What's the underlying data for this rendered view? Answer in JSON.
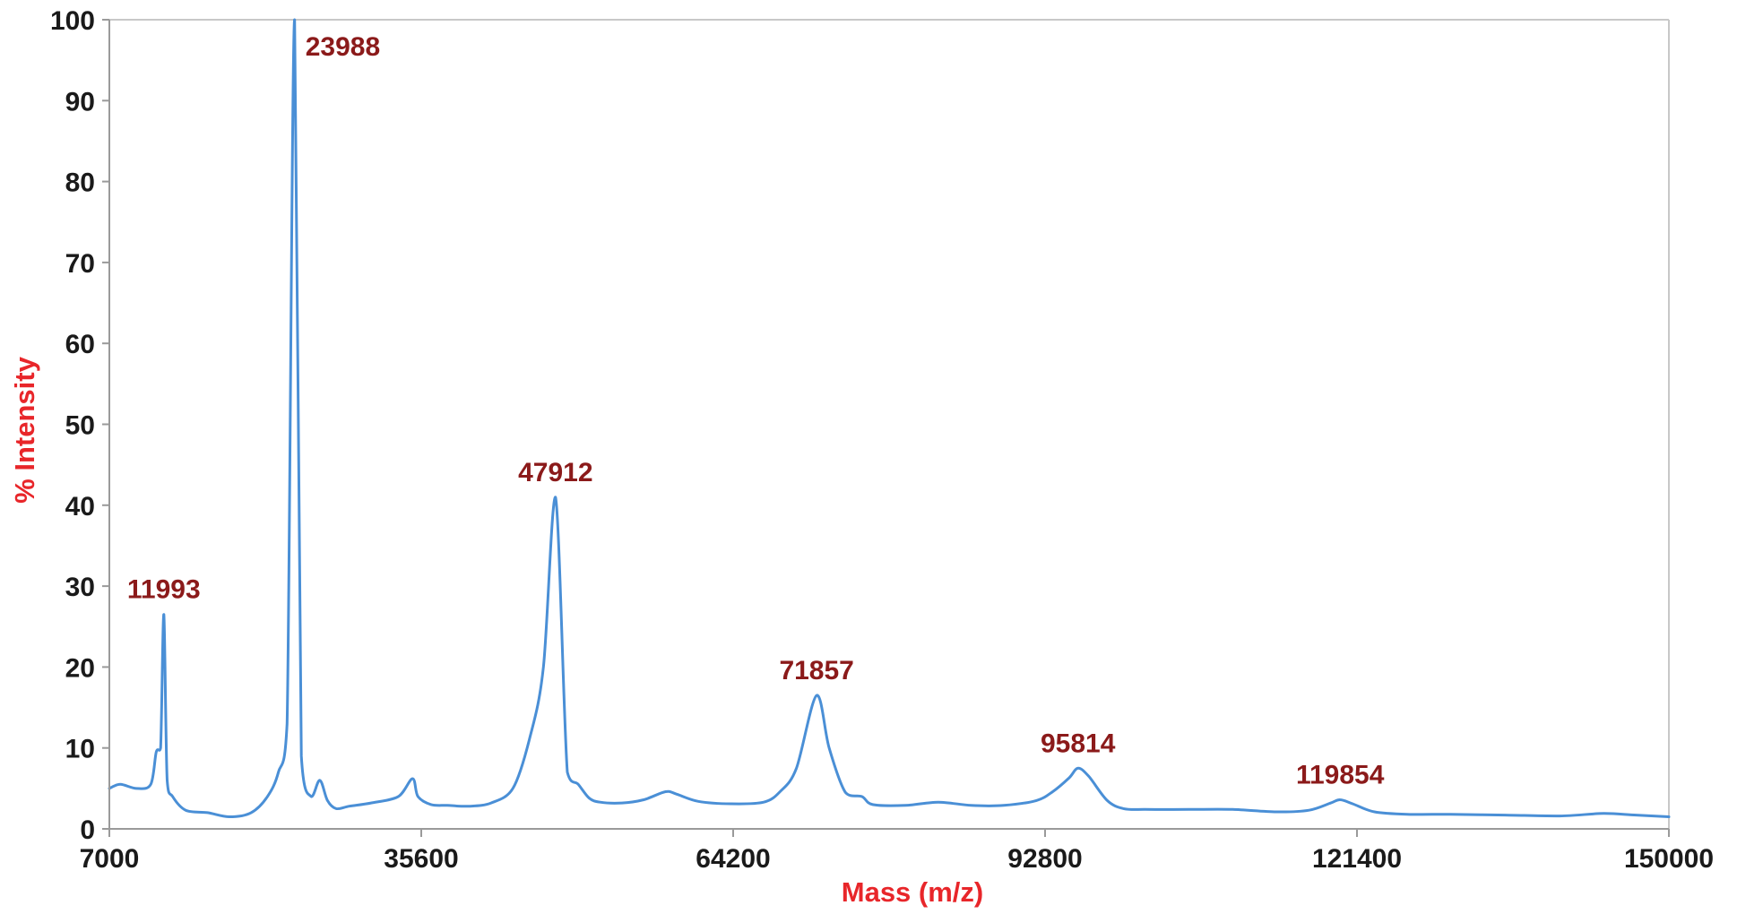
{
  "colors": {
    "series": "#4a8fd6",
    "axis_title": "#e8262a",
    "peak_label": "#8b1a1a",
    "tick_label": "#1a1a1a",
    "axis_line": "#9a9a9a",
    "frame": "#c8c8c8"
  },
  "chart_data": {
    "type": "line",
    "title": "",
    "xlabel": "Mass (m/z)",
    "ylabel": "% Intensity",
    "xlim": [
      7000,
      150000
    ],
    "ylim": [
      0,
      100
    ],
    "grid": false,
    "legend": "none",
    "x_ticks": [
      7000,
      35600,
      64200,
      92800,
      121400,
      150000
    ],
    "x_tick_labels": [
      "7000",
      "35600",
      "64200",
      "92800",
      "121400",
      "150000"
    ],
    "y_ticks": [
      0,
      10,
      20,
      30,
      40,
      50,
      60,
      70,
      80,
      90,
      100
    ],
    "y_tick_labels": [
      "0",
      "10",
      "20",
      "30",
      "40",
      "50",
      "60",
      "70",
      "80",
      "90",
      "100"
    ],
    "series": [
      {
        "x": [
          7000,
          8000,
          9500,
          10800,
          11300,
          11700,
          11993,
          12300,
          12800,
          14000,
          16000,
          18000,
          20000,
          21500,
          22500,
          23300,
          23988,
          24600,
          25500,
          26300,
          27000,
          27800,
          29000,
          31000,
          33500,
          34800,
          35300,
          36500,
          38000,
          40000,
          42000,
          44000,
          45500,
          46800,
          47912,
          49000,
          50000,
          51000,
          52000,
          54000,
          56000,
          58000,
          59000,
          61000,
          64000,
          67000,
          68500,
          70000,
          71857,
          73000,
          74500,
          76000,
          77000,
          80000,
          83000,
          86000,
          89000,
          92000,
          93500,
          95000,
          95814,
          96800,
          98500,
          100000,
          102000,
          106000,
          110000,
          114000,
          117000,
          119000,
          119854,
          121000,
          123000,
          126000,
          130000,
          135000,
          140000,
          144000,
          147000,
          150000
        ],
        "values": [
          5,
          5.5,
          5,
          5.5,
          9.5,
          10,
          26.5,
          6,
          4,
          2.3,
          2,
          1.5,
          2,
          4,
          7,
          13,
          100,
          9,
          4,
          6,
          3.5,
          2.5,
          2.8,
          3.2,
          4,
          6.2,
          4,
          3,
          2.9,
          2.8,
          3.2,
          5,
          11,
          20,
          41,
          7,
          5.5,
          3.8,
          3.3,
          3.2,
          3.6,
          4.6,
          4.3,
          3.4,
          3.1,
          3.3,
          4.6,
          7.5,
          16.5,
          10,
          4.5,
          4,
          3,
          2.9,
          3.3,
          2.9,
          2.9,
          3.5,
          4.6,
          6.3,
          7.5,
          6.5,
          3.5,
          2.5,
          2.4,
          2.4,
          2.4,
          2.1,
          2.3,
          3.2,
          3.6,
          3.1,
          2.1,
          1.8,
          1.8,
          1.7,
          1.6,
          1.9,
          1.7,
          1.5
        ]
      }
    ],
    "annotations": [
      {
        "text": "11993",
        "x": 11993,
        "y": 26.5
      },
      {
        "text": "23988",
        "x": 23988,
        "y": 100
      },
      {
        "text": "47912",
        "x": 47912,
        "y": 41
      },
      {
        "text": "71857",
        "x": 71857,
        "y": 16.5
      },
      {
        "text": "95814",
        "x": 95814,
        "y": 7.5
      },
      {
        "text": "119854",
        "x": 119854,
        "y": 3.6
      }
    ]
  }
}
